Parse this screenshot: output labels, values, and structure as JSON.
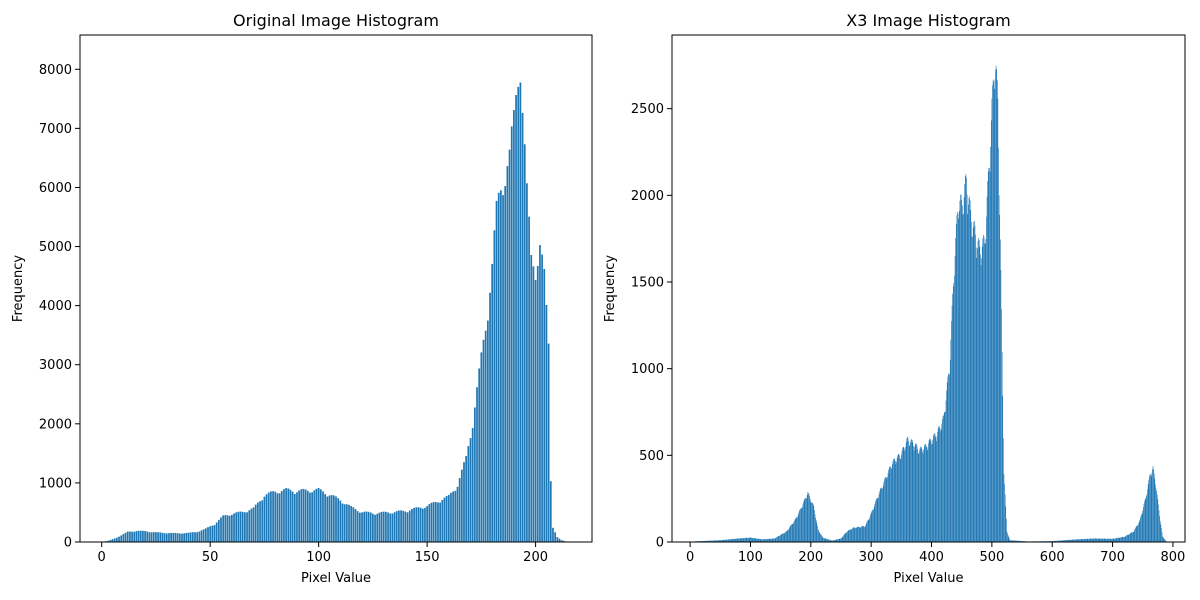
{
  "chart_data": [
    {
      "type": "bar",
      "title": "Original Image Histogram",
      "xlabel": "Pixel Value",
      "ylabel": "Frequency",
      "xlim": [
        -10,
        226
      ],
      "ylim": [
        0,
        8580
      ],
      "xticks": [
        0,
        50,
        100,
        150,
        200
      ],
      "yticks": [
        0,
        1000,
        2000,
        3000,
        4000,
        5000,
        6000,
        7000,
        8000
      ],
      "grid": false,
      "color": "#1f77b4",
      "series": [
        {
          "profile": [
            [
              0,
              0
            ],
            [
              3,
              20
            ],
            [
              6,
              60
            ],
            [
              9,
              110
            ],
            [
              12,
              170
            ],
            [
              16,
              185
            ],
            [
              20,
              180
            ],
            [
              25,
              160
            ],
            [
              30,
              150
            ],
            [
              35,
              145
            ],
            [
              40,
              150
            ],
            [
              44,
              170
            ],
            [
              48,
              220
            ],
            [
              52,
              300
            ],
            [
              56,
              430
            ],
            [
              60,
              470
            ],
            [
              65,
              500
            ],
            [
              70,
              560
            ],
            [
              75,
              780
            ],
            [
              80,
              840
            ],
            [
              85,
              870
            ],
            [
              90,
              850
            ],
            [
              95,
              860
            ],
            [
              100,
              870
            ],
            [
              105,
              790
            ],
            [
              110,
              700
            ],
            [
              115,
              580
            ],
            [
              120,
              500
            ],
            [
              125,
              480
            ],
            [
              130,
              490
            ],
            [
              135,
              500
            ],
            [
              140,
              520
            ],
            [
              145,
              560
            ],
            [
              150,
              600
            ],
            [
              155,
              680
            ],
            [
              160,
              760
            ],
            [
              164,
              950
            ],
            [
              168,
              1400
            ],
            [
              171,
              2000
            ],
            [
              174,
              2800
            ],
            [
              177,
              3600
            ],
            [
              180,
              4600
            ],
            [
              182,
              5500
            ],
            [
              184,
              5900
            ],
            [
              186,
              6200
            ],
            [
              188,
              6400
            ],
            [
              190,
              7000
            ],
            [
              192,
              7800
            ],
            [
              193,
              8150
            ],
            [
              194,
              7300
            ],
            [
              196,
              5800
            ],
            [
              198,
              4700
            ],
            [
              200,
              4600
            ],
            [
              202,
              4950
            ],
            [
              204,
              4400
            ],
            [
              206,
              3300
            ],
            [
              207,
              1050
            ],
            [
              208,
              250
            ],
            [
              210,
              80
            ],
            [
              212,
              30
            ],
            [
              215,
              0
            ]
          ],
          "from": 0,
          "to": 215
        }
      ]
    },
    {
      "type": "bar",
      "title": "X3 Image Histogram",
      "xlabel": "Pixel Value",
      "ylabel": "Frequency",
      "xlim": [
        -30,
        820
      ],
      "ylim": [
        0,
        2925
      ],
      "xticks": [
        0,
        100,
        200,
        300,
        400,
        500,
        600,
        700,
        800
      ],
      "yticks": [
        0,
        500,
        1000,
        1500,
        2000,
        2500
      ],
      "grid": false,
      "color": "#1f77b4",
      "series": [
        {
          "profile": [
            [
              0,
              0
            ],
            [
              10,
              4
            ],
            [
              50,
              10
            ],
            [
              80,
              20
            ],
            [
              100,
              25
            ],
            [
              120,
              15
            ],
            [
              140,
              20
            ],
            [
              160,
              60
            ],
            [
              175,
              130
            ],
            [
              185,
              200
            ],
            [
              195,
              280
            ],
            [
              205,
              200
            ],
            [
              212,
              70
            ],
            [
              220,
              25
            ],
            [
              235,
              8
            ],
            [
              250,
              20
            ],
            [
              260,
              60
            ],
            [
              270,
              80
            ],
            [
              290,
              90
            ],
            [
              300,
              160
            ],
            [
              310,
              250
            ],
            [
              320,
              330
            ],
            [
              335,
              450
            ],
            [
              350,
              500
            ],
            [
              360,
              580
            ],
            [
              370,
              560
            ],
            [
              380,
              520
            ],
            [
              390,
              540
            ],
            [
              400,
              580
            ],
            [
              410,
              620
            ],
            [
              420,
              700
            ],
            [
              430,
              1000
            ],
            [
              438,
              1600
            ],
            [
              445,
              1950
            ],
            [
              450,
              1900
            ],
            [
              458,
              2050
            ],
            [
              465,
              1850
            ],
            [
              472,
              1750
            ],
            [
              480,
              1650
            ],
            [
              488,
              1700
            ],
            [
              495,
              2100
            ],
            [
              500,
              2450
            ],
            [
              505,
              2750
            ],
            [
              510,
              2500
            ],
            [
              515,
              1500
            ],
            [
              520,
              400
            ],
            [
              525,
              60
            ],
            [
              530,
              10
            ],
            [
              560,
              3
            ],
            [
              600,
              5
            ],
            [
              640,
              15
            ],
            [
              670,
              20
            ],
            [
              700,
              18
            ],
            [
              720,
              30
            ],
            [
              735,
              60
            ],
            [
              745,
              120
            ],
            [
              755,
              250
            ],
            [
              762,
              380
            ],
            [
              767,
              420
            ],
            [
              772,
              320
            ],
            [
              778,
              150
            ],
            [
              783,
              30
            ],
            [
              790,
              0
            ]
          ],
          "from": 0,
          "to": 790
        }
      ]
    }
  ]
}
